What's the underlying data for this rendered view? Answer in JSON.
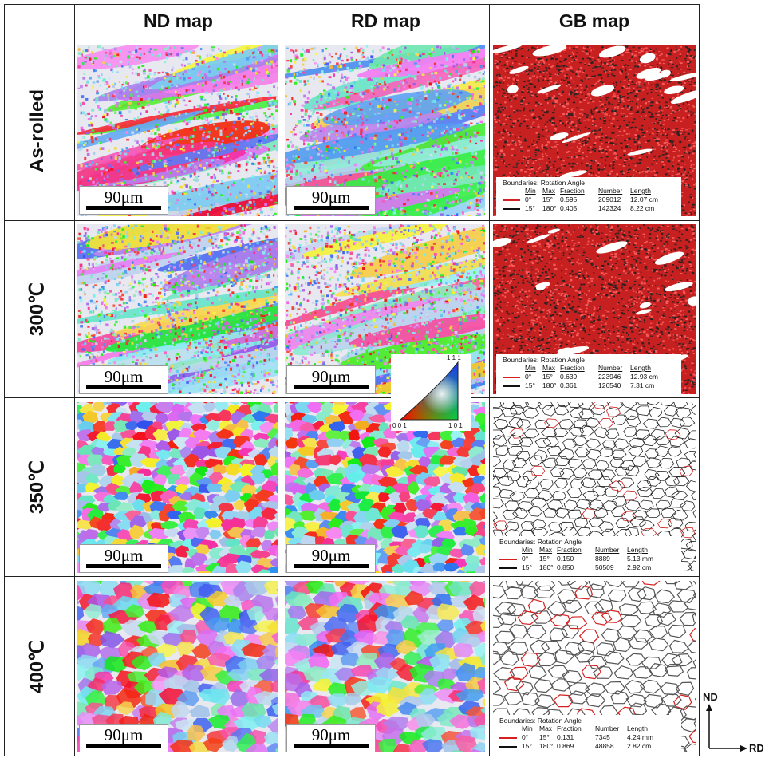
{
  "columns": [
    "ND map",
    "RD map",
    "GB map"
  ],
  "rows": [
    "As-rolled",
    "300℃",
    "350℃",
    "400℃"
  ],
  "scale_bar": "90μm",
  "legend_title": "Boundaries: Rotation Angle",
  "legend_headers": [
    "Min",
    "Max",
    "Fraction",
    "Number",
    "Length"
  ],
  "legends": [
    [
      [
        "0°",
        "15°",
        "0.595",
        "209012",
        "12.07 cm"
      ],
      [
        "15°",
        "180°",
        "0.405",
        "142324",
        "8.22 cm"
      ]
    ],
    [
      [
        "0°",
        "15°",
        "0.639",
        "223946",
        "12.93 cm"
      ],
      [
        "15°",
        "180°",
        "0.361",
        "126540",
        "7.31 cm"
      ]
    ],
    [
      [
        "0°",
        "15°",
        "0.150",
        "8889",
        "5.13 mm"
      ],
      [
        "15°",
        "180°",
        "0.850",
        "50509",
        "2.92 cm"
      ]
    ],
    [
      [
        "0°",
        "15°",
        "0.131",
        "7345",
        "4.24 mm"
      ],
      [
        "15°",
        "180°",
        "0.869",
        "48858",
        "2.82 cm"
      ]
    ]
  ],
  "ipf_labels": {
    "top": "1 1 1",
    "left": "0 0 1",
    "right": "1 0 1"
  },
  "axes": {
    "up": "ND",
    "right": "RD"
  },
  "colors": {
    "low_angle": "#d42020",
    "high_angle": "#111111"
  }
}
